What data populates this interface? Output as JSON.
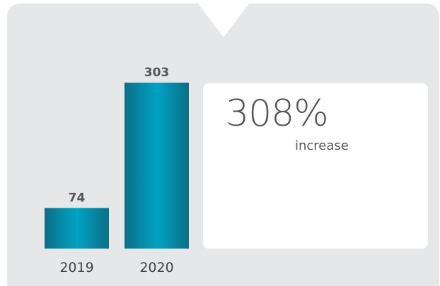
{
  "chart_data": {
    "type": "bar",
    "categories": [
      "2019",
      "2020"
    ],
    "values": [
      74,
      303
    ],
    "data_labels": [
      "74",
      "303"
    ],
    "ylim": [
      0,
      303
    ],
    "title": "",
    "xlabel": "",
    "ylabel": "",
    "grid": false,
    "bar_color": "#0098b8"
  },
  "stat": {
    "value": "308%",
    "label": "increase"
  },
  "colors": {
    "card_background": "#e6e7e9",
    "bar_center": "#00a3c4",
    "bar_edge": "#0b6f86",
    "text": "#555555"
  }
}
